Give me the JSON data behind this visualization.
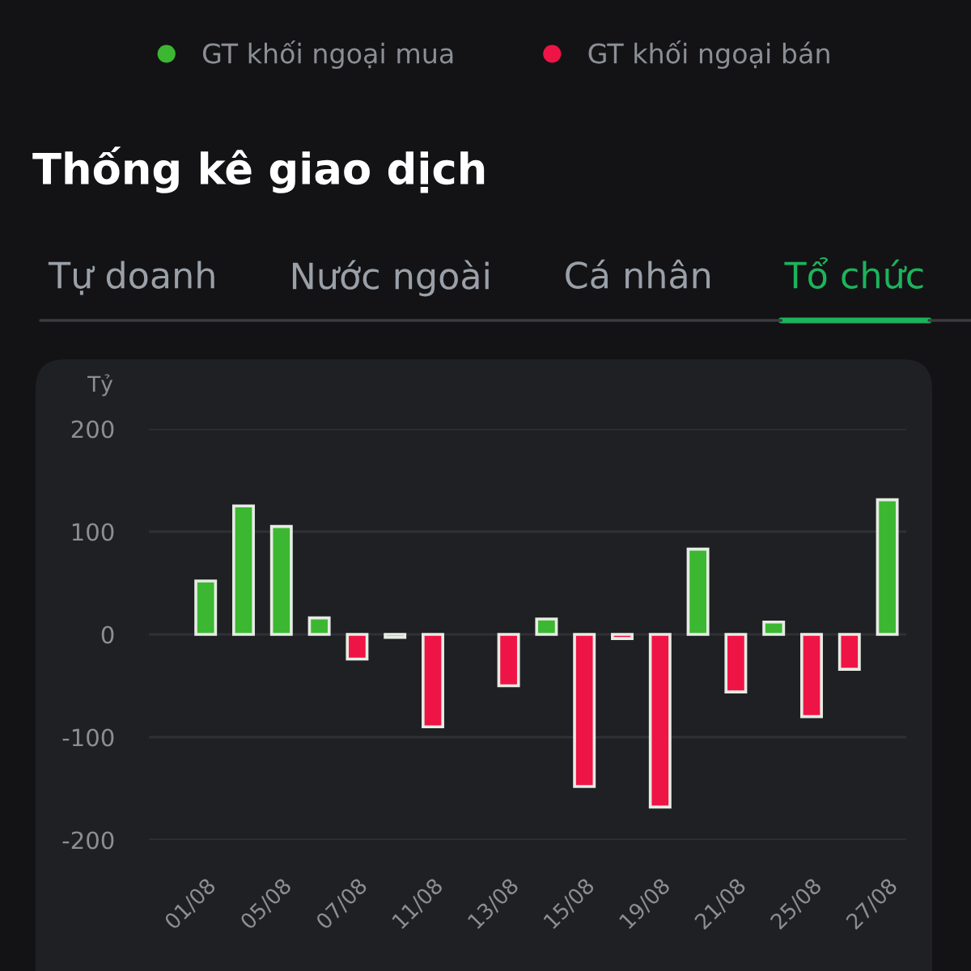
{
  "chart_data": {
    "type": "bar",
    "title": "Thống kê giao dịch",
    "ylabel": "Tỷ",
    "annotations": [
      "Tự doanh",
      "Nước ngoài",
      "Cá nhân",
      "Tổ chức"
    ],
    "categories": [
      "01/08",
      null,
      "05/08",
      null,
      "07/08",
      null,
      "11/08",
      null,
      "13/08",
      null,
      "15/08",
      null,
      "19/08",
      null,
      "21/08",
      null,
      "25/08",
      null,
      "27/08"
    ],
    "series": [
      {
        "name": "GT khối ngoại mua",
        "color": "#3cb731",
        "values": [
          52,
          125,
          105,
          16,
          null,
          null,
          null,
          null,
          null,
          15,
          null,
          null,
          null,
          83,
          null,
          12,
          null,
          null,
          131
        ]
      },
      {
        "name": "GT khối ngoại bán",
        "color": "#ef1446",
        "values": [
          null,
          null,
          null,
          null,
          -24,
          -3,
          -90,
          null,
          -50,
          null,
          -148,
          -4,
          -168,
          null,
          -56,
          null,
          -80,
          -34,
          null
        ]
      }
    ],
    "ylim": [
      -200,
      200
    ],
    "yticks": [
      -200,
      -100,
      0,
      100,
      200
    ],
    "grid": "y",
    "legend": "top"
  }
}
